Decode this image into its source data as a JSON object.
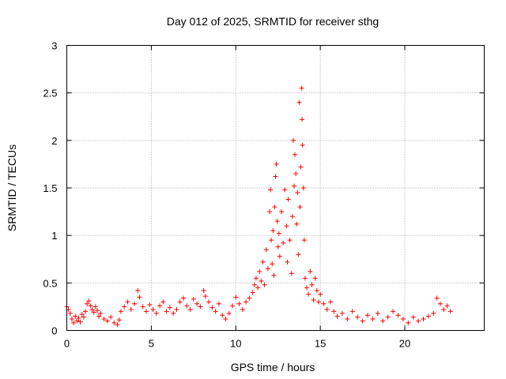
{
  "chart_data": {
    "type": "scatter",
    "title": "Day 012 of 2025, SRMTID for receiver sthg",
    "xlabel": "GPS time / hours",
    "ylabel": "SRMTID / TECUs",
    "xlim": [
      0,
      24.7
    ],
    "ylim": [
      0,
      3
    ],
    "xticks": [
      0,
      5,
      10,
      15,
      20
    ],
    "xtick_labels": [
      "0",
      "5",
      "10",
      "15",
      "20"
    ],
    "yticks": [
      0,
      0.5,
      1,
      1.5,
      2,
      2.5,
      3
    ],
    "ytick_labels": [
      "0",
      "0.5",
      "1",
      "1.5",
      "2",
      "2.5",
      "3"
    ],
    "grid": true,
    "marker": "plus",
    "color": "#ff0000",
    "series": [
      {
        "name": "SRMTID",
        "points": [
          [
            0.0,
            0.25
          ],
          [
            0.1,
            0.22
          ],
          [
            0.2,
            0.18
          ],
          [
            0.3,
            0.12
          ],
          [
            0.4,
            0.08
          ],
          [
            0.5,
            0.15
          ],
          [
            0.6,
            0.1
          ],
          [
            0.7,
            0.13
          ],
          [
            0.8,
            0.09
          ],
          [
            0.9,
            0.17
          ],
          [
            1.0,
            0.14
          ],
          [
            1.1,
            0.2
          ],
          [
            1.2,
            0.28
          ],
          [
            1.3,
            0.31
          ],
          [
            1.4,
            0.26
          ],
          [
            1.5,
            0.22
          ],
          [
            1.6,
            0.19
          ],
          [
            1.7,
            0.25
          ],
          [
            1.8,
            0.21
          ],
          [
            1.9,
            0.15
          ],
          [
            2.0,
            0.18
          ],
          [
            2.2,
            0.12
          ],
          [
            2.4,
            0.1
          ],
          [
            2.6,
            0.14
          ],
          [
            2.8,
            0.08
          ],
          [
            3.0,
            0.06
          ],
          [
            3.1,
            0.11
          ],
          [
            3.2,
            0.2
          ],
          [
            3.4,
            0.25
          ],
          [
            3.6,
            0.3
          ],
          [
            3.8,
            0.22
          ],
          [
            4.0,
            0.28
          ],
          [
            4.2,
            0.42
          ],
          [
            4.3,
            0.35
          ],
          [
            4.5,
            0.25
          ],
          [
            4.7,
            0.2
          ],
          [
            4.9,
            0.27
          ],
          [
            5.1,
            0.22
          ],
          [
            5.3,
            0.18
          ],
          [
            5.5,
            0.26
          ],
          [
            5.7,
            0.3
          ],
          [
            5.9,
            0.2
          ],
          [
            6.1,
            0.24
          ],
          [
            6.3,
            0.18
          ],
          [
            6.5,
            0.22
          ],
          [
            6.7,
            0.3
          ],
          [
            6.9,
            0.34
          ],
          [
            7.1,
            0.26
          ],
          [
            7.3,
            0.22
          ],
          [
            7.5,
            0.33
          ],
          [
            7.7,
            0.28
          ],
          [
            7.9,
            0.25
          ],
          [
            8.1,
            0.42
          ],
          [
            8.2,
            0.36
          ],
          [
            8.4,
            0.3
          ],
          [
            8.6,
            0.24
          ],
          [
            8.8,
            0.2
          ],
          [
            9.0,
            0.28
          ],
          [
            9.2,
            0.16
          ],
          [
            9.4,
            0.12
          ],
          [
            9.6,
            0.18
          ],
          [
            9.8,
            0.26
          ],
          [
            10.0,
            0.35
          ],
          [
            10.2,
            0.28
          ],
          [
            10.4,
            0.22
          ],
          [
            10.6,
            0.3
          ],
          [
            10.8,
            0.34
          ],
          [
            11.0,
            0.4
          ],
          [
            11.1,
            0.48
          ],
          [
            11.2,
            0.55
          ],
          [
            11.3,
            0.45
          ],
          [
            11.4,
            0.62
          ],
          [
            11.5,
            0.52
          ],
          [
            11.6,
            0.72
          ],
          [
            11.7,
            0.48
          ],
          [
            11.8,
            0.85
          ],
          [
            11.9,
            0.65
          ],
          [
            12.0,
            1.25
          ],
          [
            12.05,
            1.48
          ],
          [
            12.1,
            0.95
          ],
          [
            12.15,
            0.7
          ],
          [
            12.2,
            1.05
          ],
          [
            12.25,
            0.58
          ],
          [
            12.3,
            1.3
          ],
          [
            12.35,
            1.62
          ],
          [
            12.4,
            1.75
          ],
          [
            12.45,
            1.15
          ],
          [
            12.5,
            0.88
          ],
          [
            12.55,
            1.02
          ],
          [
            12.6,
            0.78
          ],
          [
            12.7,
            1.25
          ],
          [
            12.8,
            0.92
          ],
          [
            12.9,
            1.48
          ],
          [
            13.0,
            1.1
          ],
          [
            13.05,
            0.72
          ],
          [
            13.1,
            1.38
          ],
          [
            13.2,
            0.95
          ],
          [
            13.3,
            0.6
          ],
          [
            13.35,
            1.2
          ],
          [
            13.4,
            2.0
          ],
          [
            13.45,
            1.52
          ],
          [
            13.5,
            1.85
          ],
          [
            13.55,
            1.65
          ],
          [
            13.6,
            1.12
          ],
          [
            13.65,
            1.45
          ],
          [
            13.7,
            0.8
          ],
          [
            13.75,
            2.4
          ],
          [
            13.8,
            1.3
          ],
          [
            13.85,
            1.72
          ],
          [
            13.9,
            2.55
          ],
          [
            13.92,
            2.22
          ],
          [
            13.95,
            1.95
          ],
          [
            14.0,
            1.5
          ],
          [
            14.05,
            0.95
          ],
          [
            14.1,
            0.55
          ],
          [
            14.2,
            0.45
          ],
          [
            14.3,
            0.38
          ],
          [
            14.4,
            0.62
          ],
          [
            14.5,
            0.48
          ],
          [
            14.6,
            0.32
          ],
          [
            14.7,
            0.55
          ],
          [
            14.8,
            0.42
          ],
          [
            14.9,
            0.3
          ],
          [
            15.0,
            0.38
          ],
          [
            15.2,
            0.28
          ],
          [
            15.4,
            0.22
          ],
          [
            15.6,
            0.3
          ],
          [
            15.8,
            0.2
          ],
          [
            16.0,
            0.15
          ],
          [
            16.3,
            0.18
          ],
          [
            16.6,
            0.12
          ],
          [
            16.9,
            0.2
          ],
          [
            17.2,
            0.14
          ],
          [
            17.5,
            0.1
          ],
          [
            17.8,
            0.16
          ],
          [
            18.1,
            0.12
          ],
          [
            18.4,
            0.18
          ],
          [
            18.7,
            0.1
          ],
          [
            19.0,
            0.14
          ],
          [
            19.3,
            0.2
          ],
          [
            19.6,
            0.16
          ],
          [
            19.9,
            0.12
          ],
          [
            20.2,
            0.08
          ],
          [
            20.5,
            0.14
          ],
          [
            20.8,
            0.1
          ],
          [
            21.1,
            0.12
          ],
          [
            21.4,
            0.15
          ],
          [
            21.7,
            0.18
          ],
          [
            21.9,
            0.34
          ],
          [
            22.1,
            0.28
          ],
          [
            22.3,
            0.22
          ],
          [
            22.5,
            0.26
          ],
          [
            22.7,
            0.2
          ]
        ]
      }
    ]
  }
}
